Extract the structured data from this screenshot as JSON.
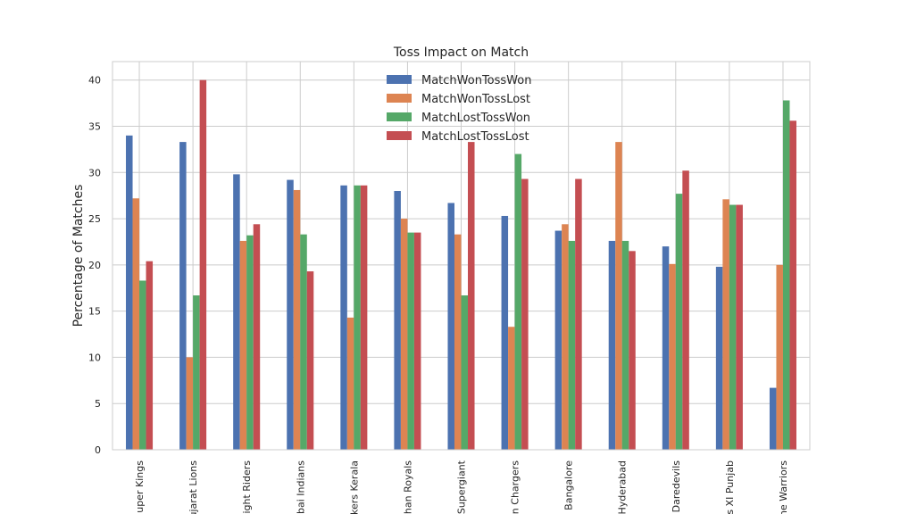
{
  "chart_data": {
    "type": "bar",
    "title": "Toss Impact on Match",
    "xlabel": "",
    "ylabel": "Percentage of Matches",
    "ylim": [
      0,
      42
    ],
    "yticks": [
      0,
      5,
      10,
      15,
      20,
      25,
      30,
      35,
      40
    ],
    "grid": true,
    "legend_position": "top-center",
    "categories": [
      "uper Kings",
      "ujarat Lions",
      "ight Riders",
      "bai Indians",
      "kers Kerala",
      "han Royals",
      "Supergiant",
      "n Chargers",
      "Bangalore",
      "Hyderabad",
      "Daredevils",
      "s XI Punjab",
      "ne Warriors"
    ],
    "series": [
      {
        "name": "MatchWonTossWon",
        "color": "#4c72b0",
        "values": [
          34.0,
          33.3,
          29.8,
          29.2,
          28.6,
          28.0,
          26.7,
          25.3,
          23.7,
          22.6,
          22.0,
          19.8,
          6.7
        ]
      },
      {
        "name": "MatchWonTossLost",
        "color": "#dd8452",
        "values": [
          27.2,
          10.0,
          22.6,
          28.1,
          14.3,
          25.0,
          23.3,
          13.3,
          24.4,
          33.3,
          20.1,
          27.1,
          20.0
        ]
      },
      {
        "name": "MatchLostTossWon",
        "color": "#55a868",
        "values": [
          18.3,
          16.7,
          23.2,
          23.3,
          28.6,
          23.5,
          16.7,
          32.0,
          22.6,
          22.6,
          27.7,
          26.5,
          37.8
        ]
      },
      {
        "name": "MatchLostTossLost",
        "color": "#c44e52",
        "values": [
          20.4,
          40.0,
          24.4,
          19.3,
          28.6,
          23.5,
          33.3,
          29.3,
          29.3,
          21.5,
          30.2,
          26.5,
          35.6
        ]
      }
    ]
  }
}
